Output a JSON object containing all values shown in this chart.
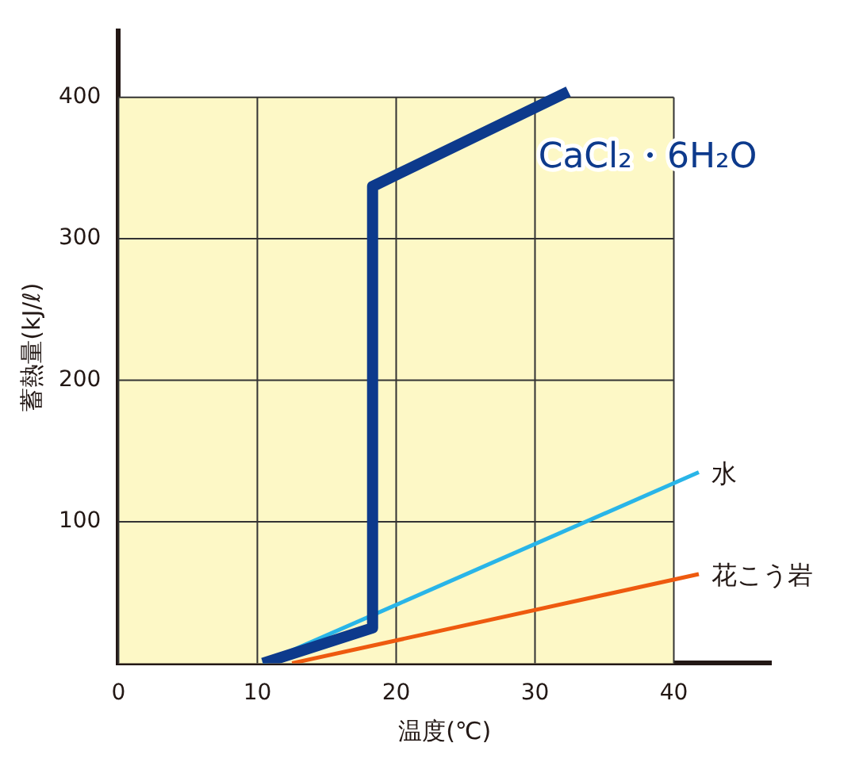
{
  "chart_data": {
    "type": "line",
    "xlabel": "温度(℃)",
    "ylabel": "蓄熱量(kJ/ℓ)",
    "xlim": [
      0,
      47
    ],
    "ylim": [
      0,
      447
    ],
    "xticks": [
      0,
      10,
      20,
      30,
      40
    ],
    "yticks": [
      100,
      200,
      300,
      400
    ],
    "grid": true,
    "marker": "none",
    "line_style": "solid",
    "legend": false,
    "bands": [
      {
        "axis": "x",
        "from": 0,
        "to": 40,
        "color": "#fdf8c6"
      }
    ],
    "series": [
      {
        "name": "CaCl₂・6H₂O",
        "color": "#0d3a8c",
        "x": [
          10.4,
          18.3,
          18.3,
          32.4
        ],
        "values": [
          0,
          25,
          337,
          404
        ]
      },
      {
        "name": "水",
        "color": "#29b5e8",
        "x": [
          10.4,
          41.8
        ],
        "values": [
          0,
          135
        ]
      },
      {
        "name": "花こう岩",
        "color": "#ee5a0f",
        "x": [
          12.5,
          41.8
        ],
        "values": [
          0,
          63
        ]
      }
    ]
  }
}
